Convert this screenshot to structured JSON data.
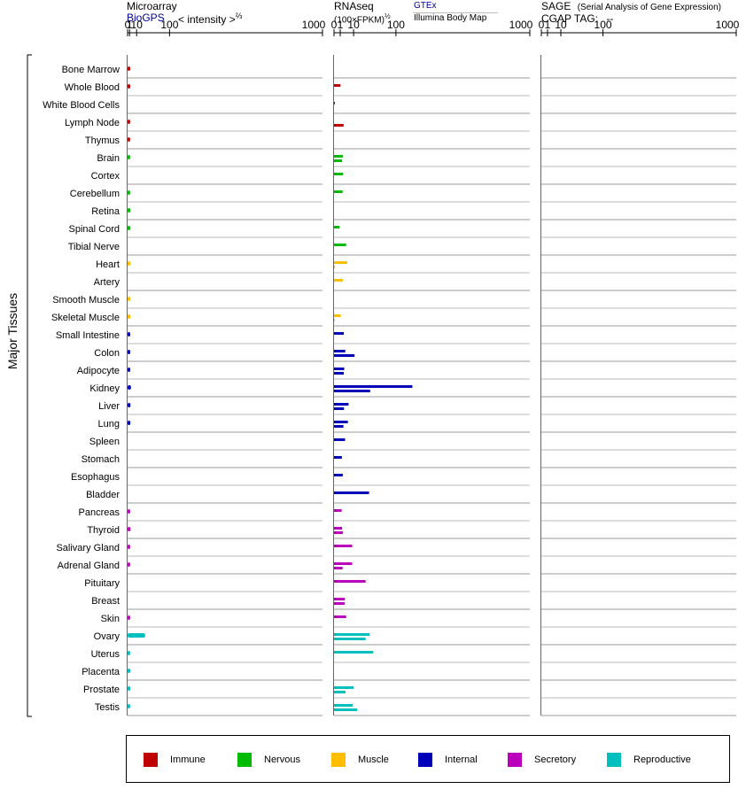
{
  "colors": {
    "Immune": "#c00000",
    "Nervous": "#00bb00",
    "Muscle": "#ffbf00",
    "Internal": "#0000b8",
    "Secretory": "#bb00bb",
    "Reproductive": "#00bfbf"
  },
  "headers": {
    "microarray": "Microarray",
    "biogps": "BioGPS",
    "intensity": "< intensity >",
    "intensity_exp": "⅔",
    "rnaseq": "RNAseq",
    "fpkm": "(100×FPKM)",
    "fpkm_exp": "½",
    "gtex": "GTEx",
    "illumina": "Illumina Body Map",
    "sage": "SAGE",
    "sage_full": "(Serial Analysis of Gene Expression)",
    "cgap": "CGAP TAG:",
    "cgap_value": "--"
  },
  "y_axis_label": "Major Tissues",
  "chart_data": {
    "type": "bar",
    "panels": [
      {
        "name": "Microarray",
        "ticks": [
          "0",
          "1",
          "10",
          "100",
          "1000"
        ]
      },
      {
        "name": "RNAseq",
        "ticks": [
          "0",
          "1",
          "10",
          "100",
          "1000"
        ]
      },
      {
        "name": "SAGE",
        "ticks": [
          "0",
          "1",
          "10",
          "100",
          "1000"
        ]
      }
    ],
    "xlim": [
      0,
      1000
    ],
    "tissues": [
      {
        "name": "Bone Marrow",
        "group": "Immune",
        "microarray": 1.6,
        "gtex": null,
        "illumina": null
      },
      {
        "name": "Whole Blood",
        "group": "Immune",
        "microarray": 1.6,
        "gtex": 1.1,
        "illumina": null
      },
      {
        "name": "White Blood Cells",
        "group": "Immune",
        "microarray": null,
        "gtex": 0.01,
        "illumina": null
      },
      {
        "name": "Lymph Node",
        "group": "Immune",
        "microarray": 1.5,
        "gtex": null,
        "illumina": 2.4
      },
      {
        "name": "Thymus",
        "group": "Immune",
        "microarray": 1.5,
        "gtex": null,
        "illumina": null
      },
      {
        "name": "Brain",
        "group": "Nervous",
        "microarray": 1.5,
        "gtex": 2.0,
        "illumina": 1.7
      },
      {
        "name": "Cortex",
        "group": "Nervous",
        "microarray": null,
        "gtex": 2.1,
        "illumina": null
      },
      {
        "name": "Cerebellum",
        "group": "Nervous",
        "microarray": 1.5,
        "gtex": 1.9,
        "illumina": null
      },
      {
        "name": "Retina",
        "group": "Nervous",
        "microarray": 1.7,
        "gtex": null,
        "illumina": null
      },
      {
        "name": "Spinal Cord",
        "group": "Nervous",
        "microarray": 1.6,
        "gtex": 0.8,
        "illumina": null
      },
      {
        "name": "Tibial Nerve",
        "group": "Nervous",
        "microarray": null,
        "gtex": 3.8,
        "illumina": null
      },
      {
        "name": "Heart",
        "group": "Muscle",
        "microarray": 1.8,
        "gtex": 4.6,
        "illumina": 0.03
      },
      {
        "name": "Artery",
        "group": "Muscle",
        "microarray": null,
        "gtex": 2.0,
        "illumina": null
      },
      {
        "name": "Smooth Muscle",
        "group": "Muscle",
        "microarray": 1.7,
        "gtex": null,
        "illumina": null
      },
      {
        "name": "Skeletal Muscle",
        "group": "Muscle",
        "microarray": 1.7,
        "gtex": 1.2,
        "illumina": 0.02
      },
      {
        "name": "Small Intestine",
        "group": "Internal",
        "microarray": 1.6,
        "gtex": 2.5,
        "illumina": null
      },
      {
        "name": "Colon",
        "group": "Internal",
        "microarray": 1.6,
        "gtex": 3.3,
        "illumina": 11.0
      },
      {
        "name": "Adipocyte",
        "group": "Internal",
        "microarray": 1.6,
        "gtex": 2.7,
        "illumina": 2.5
      },
      {
        "name": "Kidney",
        "group": "Internal",
        "microarray": 2.3,
        "gtex": 160,
        "illumina": 34
      },
      {
        "name": "Liver",
        "group": "Internal",
        "microarray": 1.8,
        "gtex": 5.5,
        "illumina": 2.6
      },
      {
        "name": "Lung",
        "group": "Internal",
        "microarray": 1.7,
        "gtex": 5.0,
        "illumina": 2.3
      },
      {
        "name": "Spleen",
        "group": "Internal",
        "microarray": null,
        "gtex": 3.2,
        "illumina": null
      },
      {
        "name": "Stomach",
        "group": "Internal",
        "microarray": null,
        "gtex": 1.6,
        "illumina": null
      },
      {
        "name": "Esophagus",
        "group": "Internal",
        "microarray": null,
        "gtex": 2.0,
        "illumina": null
      },
      {
        "name": "Bladder",
        "group": "Internal",
        "microarray": null,
        "gtex": 32,
        "illumina": null
      },
      {
        "name": "Pancreas",
        "group": "Secretory",
        "microarray": 1.5,
        "gtex": 1.5,
        "illumina": null
      },
      {
        "name": "Thyroid",
        "group": "Secretory",
        "microarray": 1.8,
        "gtex": 1.7,
        "illumina": 2.0
      },
      {
        "name": "Salivary Gland",
        "group": "Secretory",
        "microarray": 1.5,
        "gtex": 8.6,
        "illumina": null
      },
      {
        "name": "Adrenal Gland",
        "group": "Secretory",
        "microarray": 1.5,
        "gtex": 8.6,
        "illumina": 1.9
      },
      {
        "name": "Pituitary",
        "group": "Secretory",
        "microarray": null,
        "gtex": 26,
        "illumina": null
      },
      {
        "name": "Breast",
        "group": "Secretory",
        "microarray": null,
        "gtex": 3.0,
        "illumina": 2.9
      },
      {
        "name": "Skin",
        "group": "Secretory",
        "microarray": 1.5,
        "gtex": 3.8,
        "illumina": null
      },
      {
        "name": "Ovary",
        "group": "Reproductive",
        "microarray": 27,
        "gtex": 33,
        "illumina": 26
      },
      {
        "name": "Uterus",
        "group": "Reproductive",
        "microarray": 1.5,
        "gtex": 40,
        "illumina": null
      },
      {
        "name": "Placenta",
        "group": "Reproductive",
        "microarray": 1.6,
        "gtex": null,
        "illumina": null
      },
      {
        "name": "Prostate",
        "group": "Reproductive",
        "microarray": 1.7,
        "gtex": 10,
        "illumina": 3.4
      },
      {
        "name": "Testis",
        "group": "Reproductive",
        "microarray": 1.5,
        "gtex": 9.2,
        "illumina": 14
      }
    ]
  },
  "legend": {
    "placement": "bottom",
    "items": [
      {
        "label": "Immune",
        "group": "Immune"
      },
      {
        "label": "Nervous",
        "group": "Nervous"
      },
      {
        "label": "Muscle",
        "group": "Muscle"
      },
      {
        "label": "Internal",
        "group": "Internal"
      },
      {
        "label": "Secretory",
        "group": "Secretory"
      },
      {
        "label": "Reproductive",
        "group": "Reproductive"
      }
    ]
  }
}
